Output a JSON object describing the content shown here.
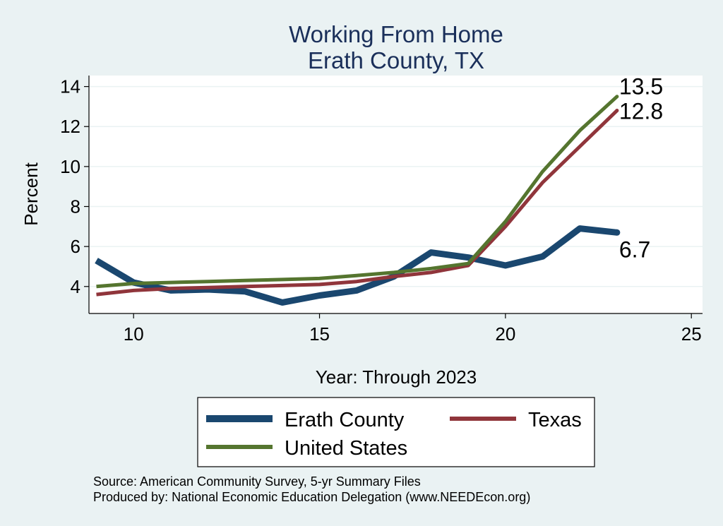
{
  "chart_data": {
    "type": "line",
    "title": "Working From Home",
    "subtitle": "Erath County, TX",
    "xlabel": "Year: Through 2023",
    "ylabel": "Percent",
    "xlim": [
      8.8,
      25.3
    ],
    "ylim": [
      2.65,
      14.55
    ],
    "xticks": [
      10,
      15,
      20,
      25
    ],
    "yticks": [
      4,
      6,
      8,
      10,
      12,
      14
    ],
    "grid": true,
    "series": [
      {
        "name": "Erath County",
        "color": "#1a476f",
        "width": 9,
        "x": [
          9,
          10,
          11,
          12,
          13,
          14,
          15,
          16,
          17,
          18,
          19,
          20,
          21,
          22,
          23
        ],
        "y": [
          5.3,
          4.2,
          3.8,
          3.85,
          3.75,
          3.2,
          3.55,
          3.8,
          4.5,
          5.7,
          5.45,
          5.05,
          5.5,
          6.9,
          6.7
        ],
        "end_label": "6.7"
      },
      {
        "name": "Texas",
        "color": "#90353b",
        "width": 5,
        "x": [
          9,
          10,
          11,
          12,
          13,
          14,
          15,
          16,
          17,
          18,
          19,
          20,
          21,
          22,
          23
        ],
        "y": [
          3.6,
          3.8,
          3.9,
          3.95,
          4.0,
          4.05,
          4.1,
          4.25,
          4.5,
          4.7,
          5.05,
          7.0,
          9.2,
          11.0,
          12.8
        ],
        "end_label": "12.8"
      },
      {
        "name": "United States",
        "color": "#55752f",
        "width": 5,
        "x": [
          9,
          10,
          11,
          12,
          13,
          14,
          15,
          16,
          17,
          18,
          19,
          20,
          21,
          22,
          23
        ],
        "y": [
          4.0,
          4.15,
          4.2,
          4.25,
          4.3,
          4.35,
          4.4,
          4.55,
          4.7,
          4.9,
          5.15,
          7.25,
          9.75,
          11.8,
          13.5
        ],
        "end_label": "13.5"
      }
    ],
    "legend": {
      "position": "bottom"
    },
    "source_lines": [
      "Source: American Community Survey, 5-yr Summary Files",
      "Produced by: National Economic Education Delegation (www.NEEDEcon.org)"
    ]
  }
}
